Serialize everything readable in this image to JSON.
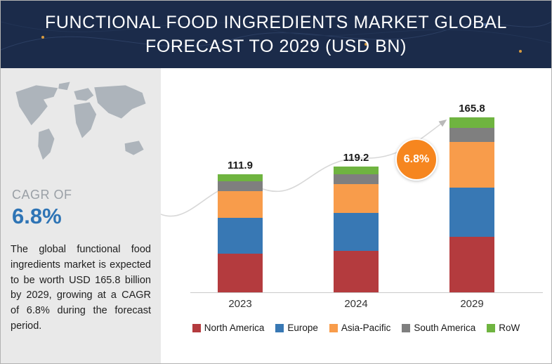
{
  "header": {
    "title_line1": "FUNCTIONAL FOOD INGREDIENTS MARKET GLOBAL",
    "title_line2": "FORECAST TO 2029 (USD BN)"
  },
  "sidebar": {
    "cagr_label": "CAGR OF",
    "cagr_value": "6.8%",
    "description": "The global functional food ingredients market is expected to be worth USD 165.8 billion by 2029, growing at a CAGR of 6.8% during the forecast period."
  },
  "badge": {
    "growth": "6.8%"
  },
  "chart_data": {
    "type": "bar",
    "stacked": true,
    "title": "Functional Food Ingredients Market Global Forecast to 2029 (USD BN)",
    "categories": [
      "2023",
      "2024",
      "2029"
    ],
    "totals": [
      111.9,
      119.2,
      165.8
    ],
    "series": [
      {
        "name": "North America",
        "color": "#b43b3e",
        "values": [
          37.0,
          39.4,
          53.0
        ]
      },
      {
        "name": "Europe",
        "color": "#3878b4",
        "values": [
          33.5,
          35.7,
          46.4
        ]
      },
      {
        "name": "Asia-Pacific",
        "color": "#f89c4b",
        "values": [
          25.7,
          27.4,
          43.0
        ]
      },
      {
        "name": "South America",
        "color": "#7f7f7f",
        "values": [
          9.2,
          9.8,
          13.4
        ]
      },
      {
        "name": "RoW",
        "color": "#6fb440",
        "values": [
          6.5,
          6.9,
          10.0
        ]
      }
    ],
    "ylabel": "USD BN",
    "legend_position": "bottom",
    "grid": false
  }
}
